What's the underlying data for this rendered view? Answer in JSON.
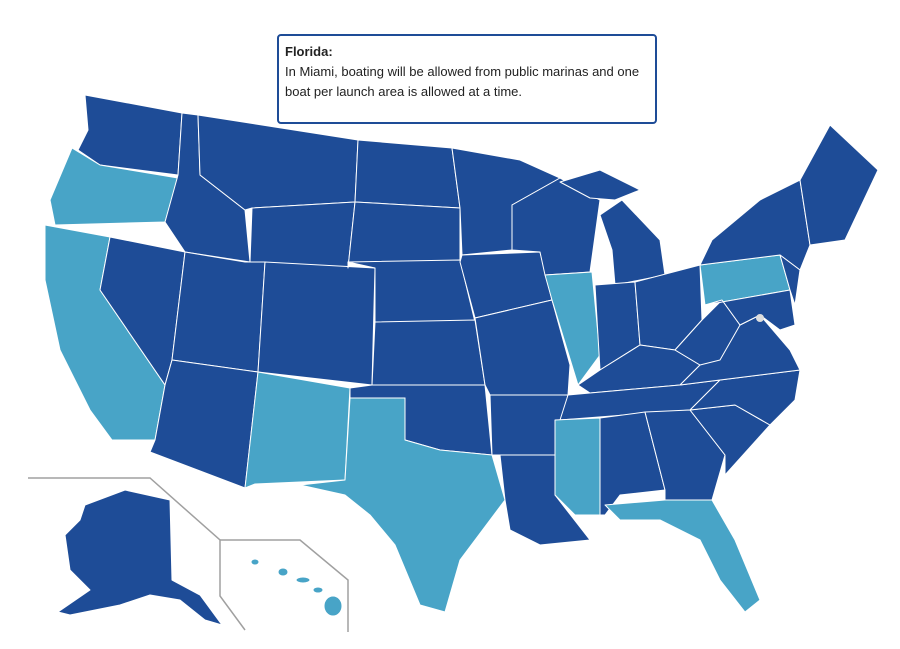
{
  "tooltip": {
    "title": "Florida:",
    "text": "In Miami, boating will be allowed from public marinas and one boat per launch area is allowed at a time."
  }
}
